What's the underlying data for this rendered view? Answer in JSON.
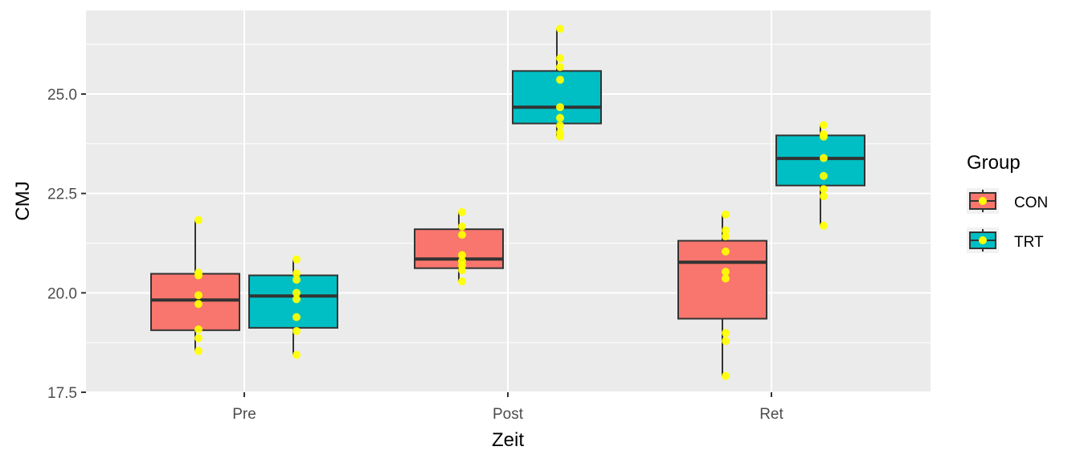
{
  "chart_data": {
    "type": "boxplot",
    "title": "",
    "xlabel": "Zeit",
    "ylabel": "CMJ",
    "categories": [
      "Pre",
      "Post",
      "Ret"
    ],
    "ylim": [
      17.5,
      27.1
    ],
    "yticks": [
      17.5,
      20.0,
      22.5,
      25.0
    ],
    "ytick_labels": [
      "17.5",
      "20.0",
      "22.5",
      "25.0"
    ],
    "grid": true,
    "legend": {
      "title": "Group",
      "position": "right"
    },
    "colors": {
      "CON": "#F8766D",
      "TRT": "#00BFC4",
      "points": "#FFFF00",
      "panel": "#EBEBEB",
      "outline": "#333333"
    },
    "series": [
      {
        "name": "CON",
        "boxes": [
          {
            "category": "Pre",
            "min": 18.54,
            "q1": 19.06,
            "median": 19.82,
            "q3": 20.48,
            "max": 21.83,
            "points": [
              21.83,
              20.51,
              20.44,
              19.94,
              19.72,
              19.08,
              18.86,
              18.54
            ]
          },
          {
            "category": "Post",
            "min": 20.29,
            "q1": 20.62,
            "median": 20.85,
            "q3": 21.6,
            "max": 22.03,
            "points": [
              22.03,
              21.67,
              21.46,
              20.95,
              20.8,
              20.69,
              20.57,
              20.29
            ]
          },
          {
            "category": "Ret",
            "min": 17.91,
            "q1": 19.35,
            "median": 20.77,
            "q3": 21.31,
            "max": 21.97,
            "points": [
              21.97,
              21.57,
              21.42,
              21.04,
              20.53,
              20.36,
              18.99,
              18.79,
              17.91
            ]
          }
        ]
      },
      {
        "name": "TRT",
        "boxes": [
          {
            "category": "Pre",
            "min": 18.44,
            "q1": 19.12,
            "median": 19.92,
            "q3": 20.44,
            "max": 20.84,
            "points": [
              20.84,
              20.49,
              20.33,
              20.0,
              19.84,
              19.39,
              19.04,
              18.44
            ]
          },
          {
            "category": "Post",
            "min": 23.93,
            "q1": 24.26,
            "median": 24.67,
            "q3": 25.58,
            "max": 26.64,
            "points": [
              26.64,
              25.9,
              25.68,
              25.36,
              24.67,
              24.4,
              24.21,
              24.03,
              23.93
            ]
          },
          {
            "category": "Ret",
            "min": 21.69,
            "q1": 22.7,
            "median": 23.38,
            "q3": 23.96,
            "max": 24.22,
            "points": [
              24.22,
              23.99,
              23.93,
              23.39,
              22.94,
              22.61,
              22.43,
              21.69
            ]
          }
        ]
      }
    ]
  }
}
